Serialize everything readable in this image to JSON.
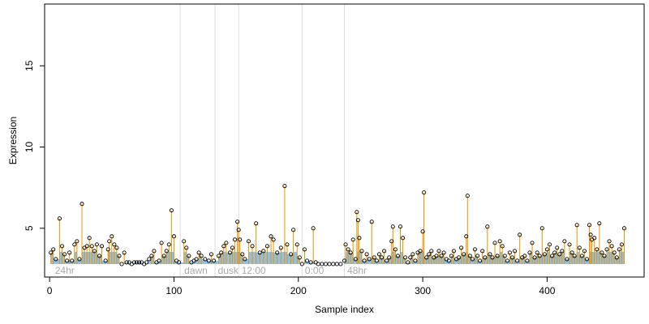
{
  "chart_data": {
    "type": "scatter",
    "title": "",
    "xlabel": "Sample index",
    "ylabel": "Expression",
    "xlim": [
      -4,
      478
    ],
    "ylim": [
      2.0,
      18.8
    ],
    "x_ticks": [
      0,
      100,
      200,
      300,
      400
    ],
    "y_ticks": [
      5,
      10,
      15
    ],
    "grid": false,
    "baseline": 2.8,
    "colors": {
      "stem": "#e69500",
      "band": "#6fa8dc",
      "point": "#000000",
      "separator": "#dddddd",
      "phase_text": "#aaaaaa"
    },
    "phase_boundaries": [
      105,
      133,
      152,
      203,
      237
    ],
    "phase_labels": [
      {
        "label": "24hr",
        "x": 3
      },
      {
        "label": "dawn",
        "x": 107
      },
      {
        "label": "dusk",
        "x": 134
      },
      {
        "label": "12:00",
        "x": 153
      },
      {
        "label": "0:00",
        "x": 204
      },
      {
        "label": "48hr",
        "x": 238
      }
    ],
    "points": [
      [
        1,
        3.5
      ],
      [
        3,
        3.7
      ],
      [
        5,
        3.1
      ],
      [
        8,
        5.6
      ],
      [
        10,
        3.9
      ],
      [
        12,
        3.4
      ],
      [
        14,
        3.0
      ],
      [
        16,
        3.5
      ],
      [
        18,
        3.0
      ],
      [
        20,
        4.0
      ],
      [
        22,
        4.2
      ],
      [
        24,
        3.1
      ],
      [
        26,
        6.5
      ],
      [
        28,
        3.8
      ],
      [
        30,
        3.9
      ],
      [
        32,
        4.4
      ],
      [
        34,
        3.9
      ],
      [
        36,
        3.6
      ],
      [
        38,
        4.0
      ],
      [
        40,
        3.3
      ],
      [
        42,
        3.9
      ],
      [
        45,
        3.0
      ],
      [
        47,
        3.7
      ],
      [
        48,
        4.2
      ],
      [
        50,
        4.5
      ],
      [
        52,
        4.0
      ],
      [
        54,
        3.8
      ],
      [
        56,
        3.3
      ],
      [
        58,
        2.8
      ],
      [
        60,
        3.5
      ],
      [
        62,
        2.9
      ],
      [
        64,
        2.9
      ],
      [
        66,
        2.8
      ],
      [
        68,
        2.9
      ],
      [
        70,
        2.9
      ],
      [
        72,
        2.9
      ],
      [
        74,
        2.9
      ],
      [
        76,
        2.8
      ],
      [
        78,
        2.9
      ],
      [
        80,
        3.1
      ],
      [
        82,
        3.3
      ],
      [
        84,
        3.6
      ],
      [
        86,
        2.9
      ],
      [
        88,
        3.0
      ],
      [
        90,
        4.1
      ],
      [
        92,
        3.3
      ],
      [
        94,
        3.6
      ],
      [
        96,
        4.0
      ],
      [
        98,
        6.1
      ],
      [
        100,
        4.5
      ],
      [
        102,
        3.0
      ],
      [
        104,
        2.9
      ],
      [
        108,
        4.2
      ],
      [
        110,
        3.8
      ],
      [
        112,
        3.3
      ],
      [
        114,
        2.9
      ],
      [
        116,
        3.0
      ],
      [
        118,
        3.1
      ],
      [
        120,
        3.5
      ],
      [
        122,
        3.3
      ],
      [
        125,
        3.1
      ],
      [
        128,
        3.0
      ],
      [
        130,
        3.4
      ],
      [
        132,
        3.0
      ],
      [
        136,
        3.3
      ],
      [
        138,
        3.5
      ],
      [
        140,
        3.9
      ],
      [
        142,
        4.1
      ],
      [
        145,
        3.5
      ],
      [
        147,
        3.8
      ],
      [
        149,
        4.3
      ],
      [
        151,
        5.4
      ],
      [
        152,
        4.9
      ],
      [
        153,
        4.3
      ],
      [
        155,
        3.4
      ],
      [
        157,
        3.1
      ],
      [
        160,
        4.2
      ],
      [
        163,
        3.9
      ],
      [
        166,
        5.3
      ],
      [
        169,
        3.5
      ],
      [
        172,
        3.6
      ],
      [
        175,
        3.9
      ],
      [
        178,
        4.5
      ],
      [
        180,
        4.3
      ],
      [
        183,
        3.5
      ],
      [
        186,
        3.8
      ],
      [
        189,
        7.6
      ],
      [
        191,
        4.0
      ],
      [
        194,
        3.4
      ],
      [
        196,
        4.9
      ],
      [
        199,
        4.0
      ],
      [
        201,
        3.2
      ],
      [
        203,
        2.8
      ],
      [
        205,
        3.7
      ],
      [
        207,
        3.0
      ],
      [
        210,
        2.9
      ],
      [
        212,
        5.0
      ],
      [
        214,
        2.9
      ],
      [
        216,
        2.8
      ],
      [
        219,
        2.8
      ],
      [
        222,
        2.8
      ],
      [
        225,
        2.8
      ],
      [
        228,
        2.8
      ],
      [
        231,
        2.8
      ],
      [
        234,
        2.8
      ],
      [
        237,
        3.0
      ],
      [
        238,
        4.0
      ],
      [
        240,
        3.7
      ],
      [
        242,
        3.5
      ],
      [
        244,
        4.3
      ],
      [
        246,
        3.1
      ],
      [
        247,
        6.0
      ],
      [
        248,
        5.5
      ],
      [
        249,
        4.4
      ],
      [
        251,
        3.6
      ],
      [
        253,
        3.0
      ],
      [
        255,
        3.4
      ],
      [
        257,
        3.1
      ],
      [
        259,
        5.4
      ],
      [
        261,
        3.2
      ],
      [
        263,
        3.0
      ],
      [
        265,
        3.4
      ],
      [
        267,
        3.2
      ],
      [
        269,
        3.6
      ],
      [
        271,
        3.0
      ],
      [
        273,
        3.2
      ],
      [
        275,
        4.2
      ],
      [
        276,
        5.1
      ],
      [
        278,
        3.7
      ],
      [
        280,
        3.3
      ],
      [
        282,
        5.1
      ],
      [
        284,
        4.4
      ],
      [
        286,
        3.2
      ],
      [
        288,
        2.9
      ],
      [
        290,
        3.2
      ],
      [
        292,
        3.4
      ],
      [
        294,
        3.0
      ],
      [
        296,
        3.5
      ],
      [
        298,
        3.6
      ],
      [
        300,
        4.8
      ],
      [
        301,
        7.2
      ],
      [
        303,
        3.2
      ],
      [
        305,
        3.4
      ],
      [
        307,
        3.6
      ],
      [
        309,
        3.2
      ],
      [
        311,
        3.3
      ],
      [
        313,
        3.6
      ],
      [
        315,
        3.3
      ],
      [
        317,
        3.5
      ],
      [
        319,
        3.1
      ],
      [
        321,
        3.0
      ],
      [
        323,
        3.3
      ],
      [
        325,
        3.6
      ],
      [
        327,
        3.1
      ],
      [
        329,
        3.2
      ],
      [
        331,
        3.8
      ],
      [
        333,
        3.4
      ],
      [
        335,
        4.5
      ],
      [
        336,
        7.0
      ],
      [
        338,
        3.3
      ],
      [
        340,
        3.1
      ],
      [
        342,
        3.7
      ],
      [
        344,
        3.3
      ],
      [
        346,
        3.0
      ],
      [
        348,
        3.6
      ],
      [
        350,
        3.2
      ],
      [
        352,
        5.1
      ],
      [
        354,
        3.4
      ],
      [
        356,
        3.2
      ],
      [
        358,
        4.1
      ],
      [
        360,
        3.3
      ],
      [
        362,
        4.2
      ],
      [
        364,
        3.9
      ],
      [
        366,
        3.3
      ],
      [
        368,
        3.0
      ],
      [
        370,
        3.5
      ],
      [
        372,
        3.2
      ],
      [
        374,
        3.6
      ],
      [
        376,
        3.0
      ],
      [
        378,
        4.6
      ],
      [
        380,
        3.2
      ],
      [
        382,
        3.3
      ],
      [
        384,
        3.0
      ],
      [
        386,
        3.5
      ],
      [
        388,
        4.1
      ],
      [
        390,
        3.2
      ],
      [
        392,
        3.5
      ],
      [
        394,
        3.3
      ],
      [
        396,
        5.0
      ],
      [
        398,
        3.4
      ],
      [
        400,
        3.7
      ],
      [
        402,
        4.0
      ],
      [
        404,
        3.3
      ],
      [
        406,
        3.5
      ],
      [
        408,
        3.8
      ],
      [
        410,
        3.4
      ],
      [
        412,
        3.6
      ],
      [
        414,
        4.2
      ],
      [
        416,
        3.1
      ],
      [
        418,
        4.0
      ],
      [
        420,
        3.5
      ],
      [
        422,
        3.3
      ],
      [
        424,
        5.2
      ],
      [
        426,
        3.8
      ],
      [
        428,
        3.3
      ],
      [
        430,
        3.6
      ],
      [
        432,
        3.1
      ],
      [
        434,
        5.2
      ],
      [
        435,
        4.6
      ],
      [
        436,
        4.3
      ],
      [
        438,
        4.4
      ],
      [
        440,
        3.7
      ],
      [
        442,
        5.3
      ],
      [
        444,
        3.5
      ],
      [
        446,
        3.3
      ],
      [
        448,
        3.7
      ],
      [
        450,
        4.2
      ],
      [
        452,
        3.9
      ],
      [
        454,
        3.5
      ],
      [
        456,
        3.2
      ],
      [
        458,
        3.7
      ],
      [
        460,
        4.0
      ],
      [
        462,
        5.0
      ]
    ]
  }
}
